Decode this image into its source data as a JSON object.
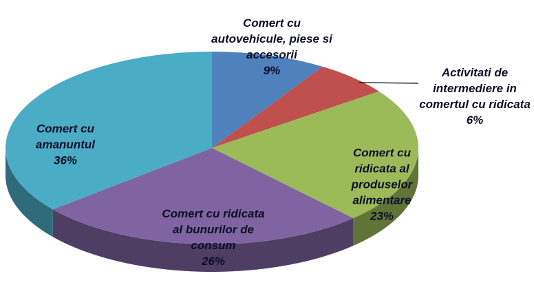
{
  "chart_data": {
    "type": "pie",
    "categories": [
      "Comert  cu autovehicule, piese si accesorii",
      "Activitati de intermediere in comertul cu ridicata",
      "Comert cu ridicata al produselor alimentare",
      "Comert cu ridicata al bunurilor de consum",
      "Comert cu amanuntul"
    ],
    "values": [
      9,
      6,
      23,
      26,
      36
    ],
    "value_labels": [
      "9%",
      "6%",
      "23%",
      "26%",
      "36%"
    ],
    "colors": [
      "#4f81bd",
      "#c0504d",
      "#9bbb59",
      "#8064a2",
      "#4bacc6"
    ]
  }
}
